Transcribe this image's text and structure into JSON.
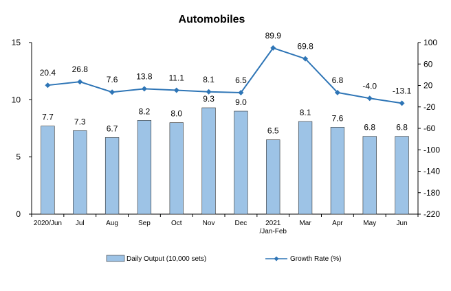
{
  "chart_data": {
    "type": "bar+line",
    "title": "Automobiles",
    "categories": [
      "2020/Jun",
      "Jul",
      "Aug",
      "Sep",
      "Oct",
      "Nov",
      "Dec",
      "2021\n/Jan-Feb",
      "Mar",
      "Apr",
      "May",
      "Jun"
    ],
    "series": [
      {
        "name": "Daily Output (10,000 sets)",
        "type": "bar",
        "axis": "left",
        "color": "#9DC3E6",
        "values": [
          7.7,
          7.3,
          6.7,
          8.2,
          8.0,
          9.3,
          9.0,
          6.5,
          8.1,
          7.6,
          6.8,
          6.8
        ],
        "labels": [
          "7.7",
          "7.3",
          "6.7",
          "8.2",
          "8.0",
          "9.3",
          "9.0",
          "6.5",
          "8.1",
          "7.6",
          "6.8",
          "6.8"
        ]
      },
      {
        "name": "Growth Rate (%)",
        "type": "line",
        "axis": "right",
        "color": "#2E75B6",
        "values": [
          20.4,
          26.8,
          7.6,
          13.8,
          11.1,
          8.1,
          6.5,
          89.9,
          69.8,
          6.8,
          -4.0,
          -13.1
        ],
        "labels": [
          "20.4",
          "26.8",
          "7.6",
          "13.8",
          "11.1",
          "8.1",
          "6.5",
          "89.9",
          "69.8",
          "6.8",
          "-4.0",
          "-13.1"
        ]
      }
    ],
    "y_left": {
      "min": 0,
      "max": 15,
      "ticks": [
        "0",
        "5",
        "10",
        "15"
      ]
    },
    "y_right": {
      "min": -220,
      "max": 100,
      "ticks": [
        "100",
        "60",
        "20",
        "-20",
        "-60",
        "-100",
        "-140",
        "-180",
        "-220"
      ]
    },
    "grid": false,
    "legend": "bottom"
  }
}
